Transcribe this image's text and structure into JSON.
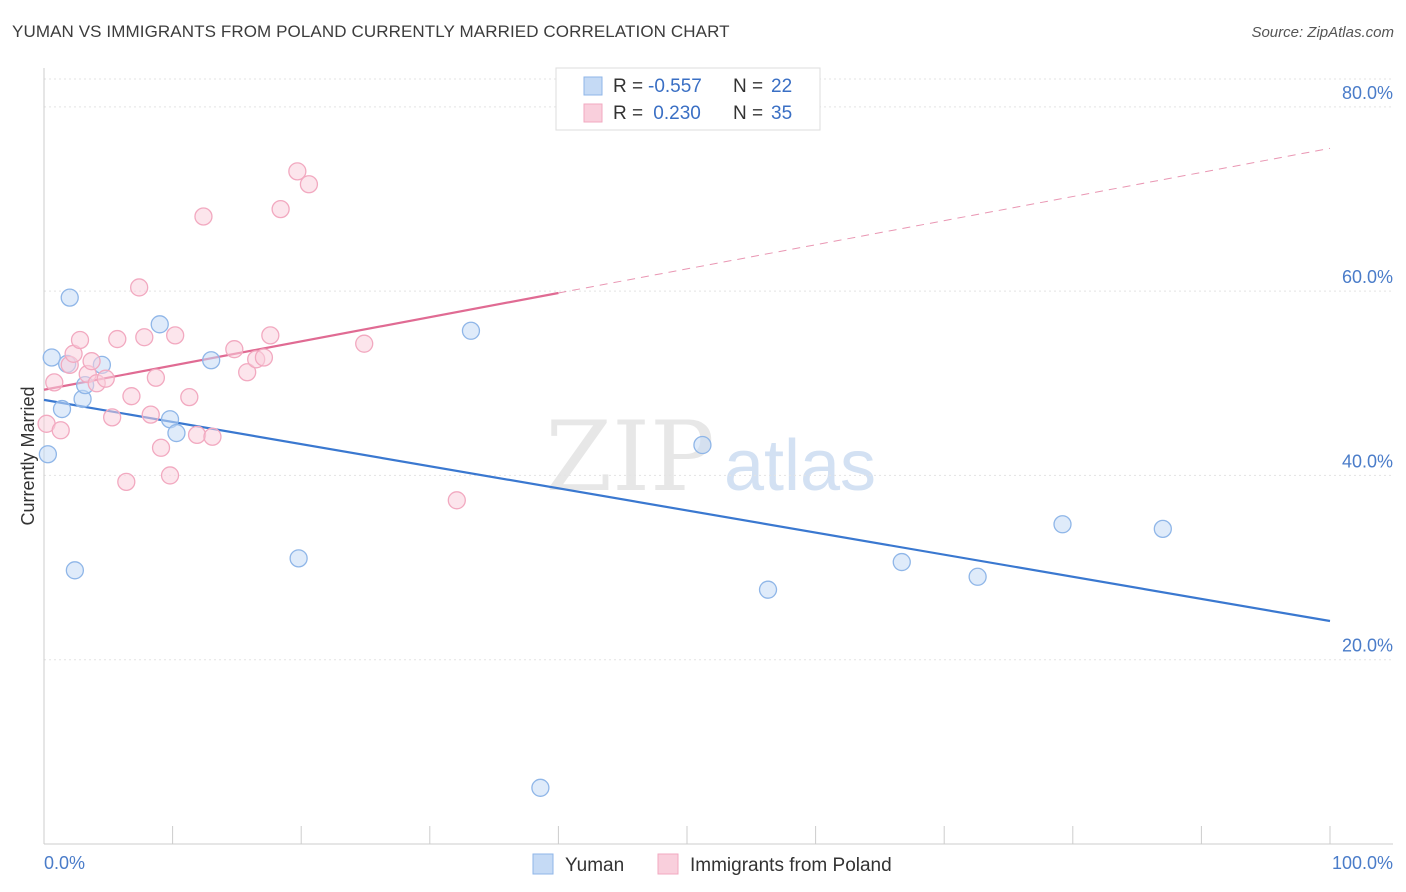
{
  "title": "YUMAN VS IMMIGRANTS FROM POLAND CURRENTLY MARRIED CORRELATION CHART",
  "source": "Source: ZipAtlas.com",
  "watermark": {
    "zip": "ZIP",
    "atlas": "atlas"
  },
  "chart_data": {
    "type": "scatter",
    "ylabel": "Currently Married",
    "xlim": [
      0,
      100
    ],
    "ylim": [
      0,
      84
    ],
    "x_tick_labels": [
      "0.0%",
      "100.0%"
    ],
    "y_ticks": [
      {
        "value": 20,
        "label": "20.0%"
      },
      {
        "value": 40,
        "label": "40.0%"
      },
      {
        "value": 60,
        "label": "60.0%"
      },
      {
        "value": 80,
        "label": "80.0%"
      }
    ],
    "grid": true,
    "legend": {
      "position": "top-center",
      "rows": [
        {
          "r_label": "R =",
          "r_value": "-0.557",
          "n_label": "N =",
          "n_value": "22"
        },
        {
          "r_label": "R =",
          "r_value": " 0.230",
          "n_label": "N =",
          "n_value": "35"
        }
      ]
    },
    "series": [
      {
        "name": "Yuman",
        "color": "#8fb6e8",
        "line_color": "#3a78d0",
        "trend": {
          "x0": 0,
          "y0": 48.2,
          "x1": 100,
          "y1": 24.2
        },
        "points": [
          [
            0.3,
            42.3
          ],
          [
            0.6,
            52.8
          ],
          [
            1.4,
            47.2
          ],
          [
            1.8,
            52.1
          ],
          [
            2.0,
            59.3
          ],
          [
            2.4,
            29.7
          ],
          [
            3.0,
            48.3
          ],
          [
            3.2,
            49.8
          ],
          [
            4.5,
            52.0
          ],
          [
            9.0,
            56.4
          ],
          [
            9.8,
            46.1
          ],
          [
            10.3,
            44.6
          ],
          [
            13.0,
            52.5
          ],
          [
            19.8,
            31.0
          ],
          [
            33.2,
            55.7
          ],
          [
            38.6,
            6.1
          ],
          [
            51.2,
            43.3
          ],
          [
            56.3,
            27.6
          ],
          [
            66.7,
            30.6
          ],
          [
            72.6,
            29.0
          ],
          [
            79.2,
            34.7
          ],
          [
            87.0,
            34.2
          ]
        ]
      },
      {
        "name": "Immigrants from Poland",
        "color": "#f2a9c0",
        "line_color": "#e06b93",
        "trend": {
          "x0": 0,
          "y0": 49.3,
          "x1": 40,
          "y1": 59.8
        },
        "trend_dashed": {
          "x0": 40,
          "y0": 59.8,
          "x1": 100,
          "y1": 75.5
        },
        "points": [
          [
            0.2,
            45.6
          ],
          [
            0.8,
            50.1
          ],
          [
            1.3,
            44.9
          ],
          [
            2.0,
            52.0
          ],
          [
            2.3,
            53.2
          ],
          [
            2.8,
            54.7
          ],
          [
            3.4,
            51.0
          ],
          [
            3.7,
            52.4
          ],
          [
            4.1,
            50.0
          ],
          [
            4.8,
            50.5
          ],
          [
            5.3,
            46.3
          ],
          [
            5.7,
            54.8
          ],
          [
            6.4,
            39.3
          ],
          [
            6.8,
            48.6
          ],
          [
            7.4,
            60.4
          ],
          [
            7.8,
            55.0
          ],
          [
            8.3,
            46.6
          ],
          [
            8.7,
            50.6
          ],
          [
            9.1,
            43.0
          ],
          [
            9.8,
            40.0
          ],
          [
            10.2,
            55.2
          ],
          [
            11.3,
            48.5
          ],
          [
            11.9,
            44.4
          ],
          [
            12.4,
            68.1
          ],
          [
            13.1,
            44.2
          ],
          [
            14.8,
            53.7
          ],
          [
            15.8,
            51.2
          ],
          [
            16.5,
            52.6
          ],
          [
            17.1,
            52.8
          ],
          [
            17.6,
            55.2
          ],
          [
            18.4,
            68.9
          ],
          [
            19.7,
            73.0
          ],
          [
            20.6,
            71.6
          ],
          [
            24.9,
            54.3
          ],
          [
            32.1,
            37.3
          ]
        ]
      }
    ]
  }
}
